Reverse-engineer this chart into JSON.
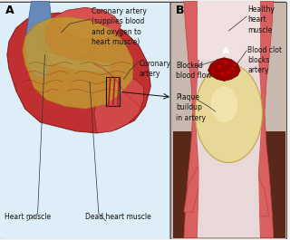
{
  "fig_width": 3.2,
  "fig_height": 2.65,
  "dpi": 100,
  "bg_outer": "#f0f0f0",
  "panel_a_bg": "#ddeef8",
  "panel_b_bg": "#c8b8b0",
  "border_color": "#444444",
  "heart_main": "#c03030",
  "heart_mid": "#d04848",
  "heart_light": "#e07060",
  "heart_dark": "#882020",
  "aorta_blue": "#6688bb",
  "aorta_light": "#88aacc",
  "dead_tissue": "#c09830",
  "dead_dark": "#a07820",
  "muscle_dark": "#7a1818",
  "artery_outer": "#c04040",
  "artery_wall": "#d86060",
  "artery_inner": "#e89090",
  "plaque_fill": "#e8d898",
  "plaque_edge": "#c0a840",
  "clot_color": "#8b0000",
  "lumen_color": "#e8d8d8",
  "label_A": "A",
  "label_B": "B",
  "text_coronary_artery": "Coronary artery\n(supplies blood\nand oxygen to\nheart muscle)",
  "text_coronary_artery2": "Coronary\nartery",
  "text_heart_muscle": "Heart muscle",
  "text_dead_heart": "Dead heart muscle",
  "text_healthy": "Healthy\nheart\nmuscle",
  "text_blood_clot": "Blood clot\nblocks\nartery",
  "text_blocked": "Blocked\nblood flow",
  "text_plaque": "Plaque\nbuildup\nin artery",
  "font_size": 5.5
}
